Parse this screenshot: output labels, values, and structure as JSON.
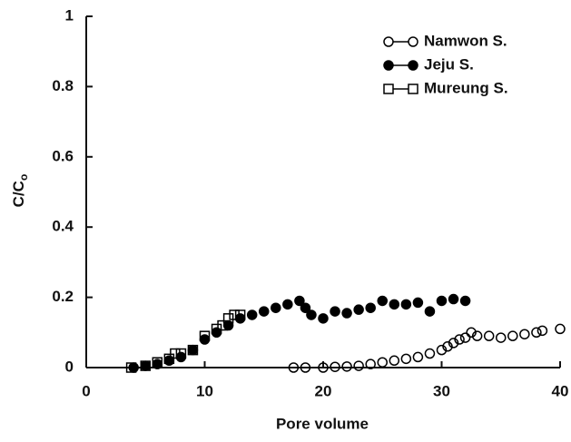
{
  "chart_data": {
    "type": "scatter",
    "xlabel": "Pore volume",
    "ylabel": "C/C",
    "ylabel_sub": "o",
    "xlim": [
      0,
      40
    ],
    "xticks": [
      0,
      10,
      20,
      30,
      40
    ],
    "ylim": [
      0,
      1
    ],
    "yticks": [
      {
        "value": 0,
        "label": "0"
      },
      {
        "value": 0.2,
        "label": "0.2"
      },
      {
        "value": 0.4,
        "label": "0.4"
      },
      {
        "value": 0.6,
        "label": "0.6"
      },
      {
        "value": 0.8,
        "label": "0.8"
      },
      {
        "value": 1,
        "label": "1"
      }
    ],
    "legend": "upper right",
    "series": [
      {
        "name": "Namwon S.",
        "color": "#000000",
        "marker": "open-circle",
        "x": [
          17.5,
          18.5,
          20,
          21,
          22,
          23,
          24,
          25,
          26,
          27,
          28,
          29,
          30,
          30.5,
          31,
          31.5,
          32,
          32.5,
          33,
          34,
          35,
          36,
          37,
          38,
          38.5,
          40
        ],
        "values": [
          0,
          0,
          0,
          0.002,
          0.003,
          0.005,
          0.01,
          0.015,
          0.02,
          0.025,
          0.03,
          0.04,
          0.05,
          0.06,
          0.07,
          0.08,
          0.085,
          0.1,
          0.09,
          0.09,
          0.085,
          0.09,
          0.095,
          0.1,
          0.105,
          0.11
        ]
      },
      {
        "name": "Jeju S.",
        "color": "#000000",
        "marker": "filled-circle",
        "x": [
          4,
          5,
          6,
          7,
          8,
          9,
          10,
          11,
          12,
          13,
          14,
          15,
          16,
          17,
          18,
          18.5,
          19,
          20,
          21,
          22,
          23,
          24,
          25,
          26,
          27,
          28,
          29,
          30,
          31,
          32
        ],
        "values": [
          0,
          0.005,
          0.01,
          0.02,
          0.03,
          0.05,
          0.08,
          0.1,
          0.12,
          0.14,
          0.15,
          0.16,
          0.17,
          0.18,
          0.19,
          0.17,
          0.15,
          0.14,
          0.16,
          0.155,
          0.165,
          0.17,
          0.19,
          0.18,
          0.18,
          0.185,
          0.16,
          0.19,
          0.195,
          0.19
        ]
      },
      {
        "name": "Mureung S.",
        "color": "#000000",
        "marker": "open-square",
        "x": [
          3.8,
          5,
          6,
          7,
          7.5,
          8,
          9,
          10,
          11,
          11.5,
          12,
          12.5,
          13
        ],
        "values": [
          0,
          0.005,
          0.015,
          0.025,
          0.04,
          0.04,
          0.05,
          0.09,
          0.11,
          0.12,
          0.14,
          0.15,
          0.15
        ]
      }
    ]
  }
}
